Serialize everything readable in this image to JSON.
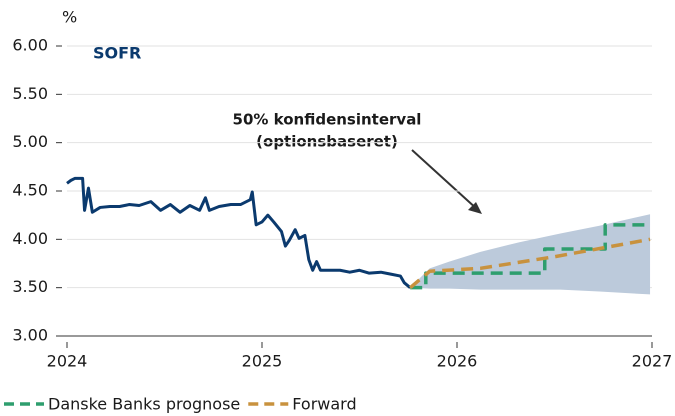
{
  "chart_data": {
    "type": "line",
    "title": "SOFR",
    "y_unit": "%",
    "annotation": [
      "50% konfidensinterval",
      "(optionsbaseret)"
    ],
    "xlim": [
      2024,
      2027
    ],
    "xticks": [
      2024,
      2025,
      2026,
      2027
    ],
    "ylim": [
      3,
      6
    ],
    "yticks": [
      {
        "value": 3,
        "label": "3.00"
      },
      {
        "value": 3.5,
        "label": "3.50"
      },
      {
        "value": 4,
        "label": "4.00"
      },
      {
        "value": 4.5,
        "label": "4.50"
      },
      {
        "value": 5,
        "label": "5.00"
      },
      {
        "value": 5.5,
        "label": "5.50"
      },
      {
        "value": 6,
        "label": "6.00"
      }
    ],
    "grid": true,
    "band": {
      "color": "#bccadb",
      "x": [
        2025.76,
        2025.86,
        2025.96,
        2026.12,
        2026.32,
        2026.53,
        2026.73,
        2026.99
      ],
      "upper": [
        3.5,
        3.7,
        3.77,
        3.87,
        3.97,
        4.06,
        4.14,
        4.26
      ],
      "lower": [
        3.5,
        3.49,
        3.49,
        3.48,
        3.48,
        3.48,
        3.46,
        3.43
      ]
    },
    "series": [
      {
        "color": "#0b3a6e",
        "dash": false,
        "x": [
          2024.0,
          2024.02,
          2024.04,
          2024.08,
          2024.09,
          2024.11,
          2024.13,
          2024.17,
          2024.22,
          2024.27,
          2024.32,
          2024.37,
          2024.43,
          2024.48,
          2024.53,
          2024.58,
          2024.63,
          2024.68,
          2024.71,
          2024.73,
          2024.78,
          2024.84,
          2024.89,
          2024.94,
          2024.95,
          2024.97,
          2025.0,
          2025.03,
          2025.06,
          2025.1,
          2025.12,
          2025.14,
          2025.17,
          2025.19,
          2025.22,
          2025.24,
          2025.26,
          2025.28,
          2025.3,
          2025.35,
          2025.4,
          2025.45,
          2025.5,
          2025.55,
          2025.61,
          2025.66,
          2025.71,
          2025.73,
          2025.76
        ],
        "values": [
          4.58,
          4.61,
          4.63,
          4.63,
          4.3,
          4.53,
          4.28,
          4.33,
          4.34,
          4.34,
          4.36,
          4.35,
          4.39,
          4.3,
          4.36,
          4.28,
          4.35,
          4.3,
          4.43,
          4.3,
          4.34,
          4.36,
          4.36,
          4.41,
          4.49,
          4.15,
          4.18,
          4.25,
          4.18,
          4.08,
          3.93,
          3.99,
          4.1,
          4.01,
          4.04,
          3.79,
          3.68,
          3.77,
          3.68,
          3.68,
          3.68,
          3.66,
          3.68,
          3.65,
          3.66,
          3.64,
          3.62,
          3.55,
          3.5
        ]
      },
      {
        "name": "Danske Banks prognose",
        "color": "#2e9e6e",
        "dash": true,
        "x": [
          2025.76,
          2025.84,
          2025.84,
          2026.45,
          2026.45,
          2026.76,
          2026.76,
          2026.99
        ],
        "values": [
          3.5,
          3.5,
          3.65,
          3.65,
          3.9,
          3.9,
          4.15,
          4.15
        ]
      },
      {
        "name": "Forward",
        "color": "#c8923e",
        "dash": true,
        "x": [
          2025.76,
          2025.86,
          2026.12,
          2026.5,
          2026.99
        ],
        "values": [
          3.5,
          3.67,
          3.7,
          3.82,
          4.0
        ]
      }
    ]
  }
}
